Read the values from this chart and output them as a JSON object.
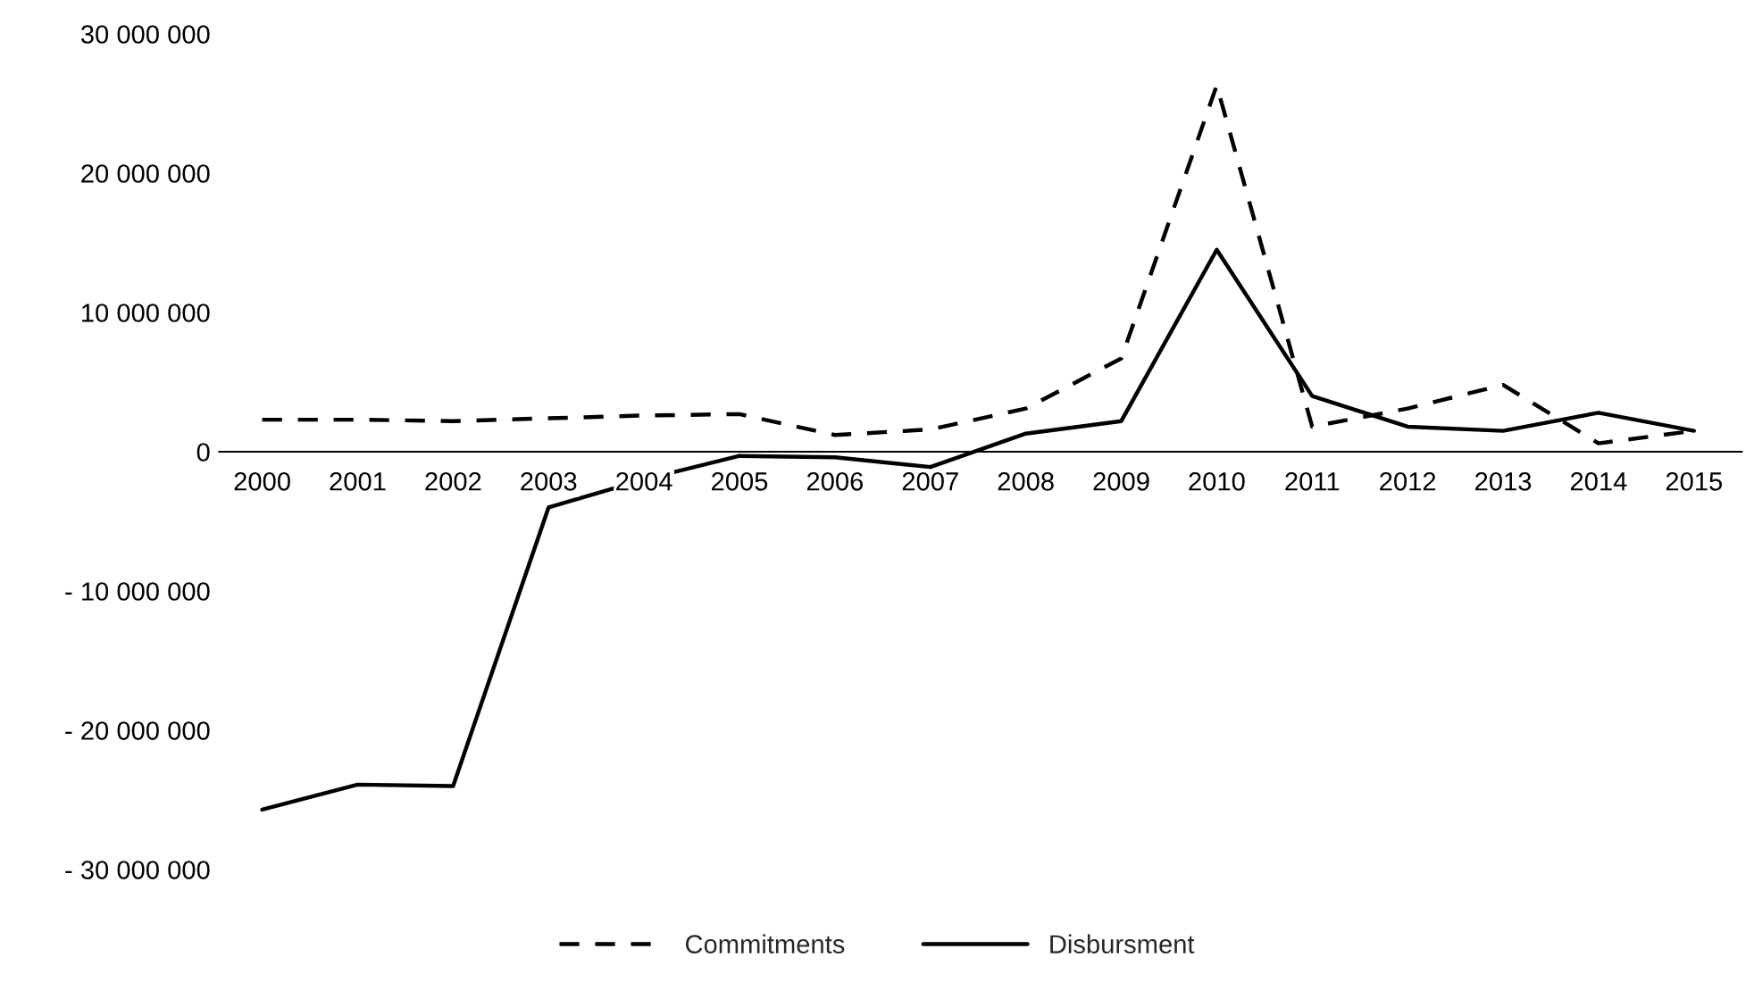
{
  "chart_data": {
    "type": "line",
    "categories": [
      "2000",
      "2001",
      "2002",
      "2003",
      "2004",
      "2005",
      "2006",
      "2007",
      "2008",
      "2009",
      "2010",
      "2011",
      "2012",
      "2013",
      "2014",
      "2015"
    ],
    "series": [
      {
        "name": "Commitments",
        "color": "#000000",
        "line_style": "dashed",
        "values": [
          2300000.0,
          2300000.0,
          2200000.0,
          2400000.0,
          2600000.0,
          2700000.0,
          1200000.0,
          1600000.0,
          3100000.0,
          6700000.0,
          26300000.0,
          1800000.0,
          3100000.0,
          4800000.0,
          600000.0,
          1500000.0
        ]
      },
      {
        "name": "Disbursment",
        "color": "#000000",
        "line_style": "solid",
        "values": [
          -25700000.0,
          -23900000.0,
          -24000000.0,
          -4000000.0,
          -2000000.0,
          -300000.0,
          -400000.0,
          -1100000.0,
          1300000.0,
          2200000.0,
          14500000.0,
          4000000.0,
          1800000.0,
          1500000.0,
          2800000.0,
          1500000.0
        ]
      }
    ],
    "ylim": [
      -30000000,
      30000000
    ],
    "yticks": [
      {
        "value": -30000000,
        "label": "- 30 000 000"
      },
      {
        "value": -20000000,
        "label": "- 20 000 000"
      },
      {
        "value": -10000000,
        "label": "- 10 000 000"
      },
      {
        "value": 0,
        "label": "0"
      },
      {
        "value": 10000000,
        "label": "10 000 000"
      },
      {
        "value": 20000000,
        "label": "20 000 000"
      },
      {
        "value": 30000000,
        "label": "30 000 000"
      }
    ],
    "grid": false,
    "legend": "bottom",
    "marker": "none"
  }
}
